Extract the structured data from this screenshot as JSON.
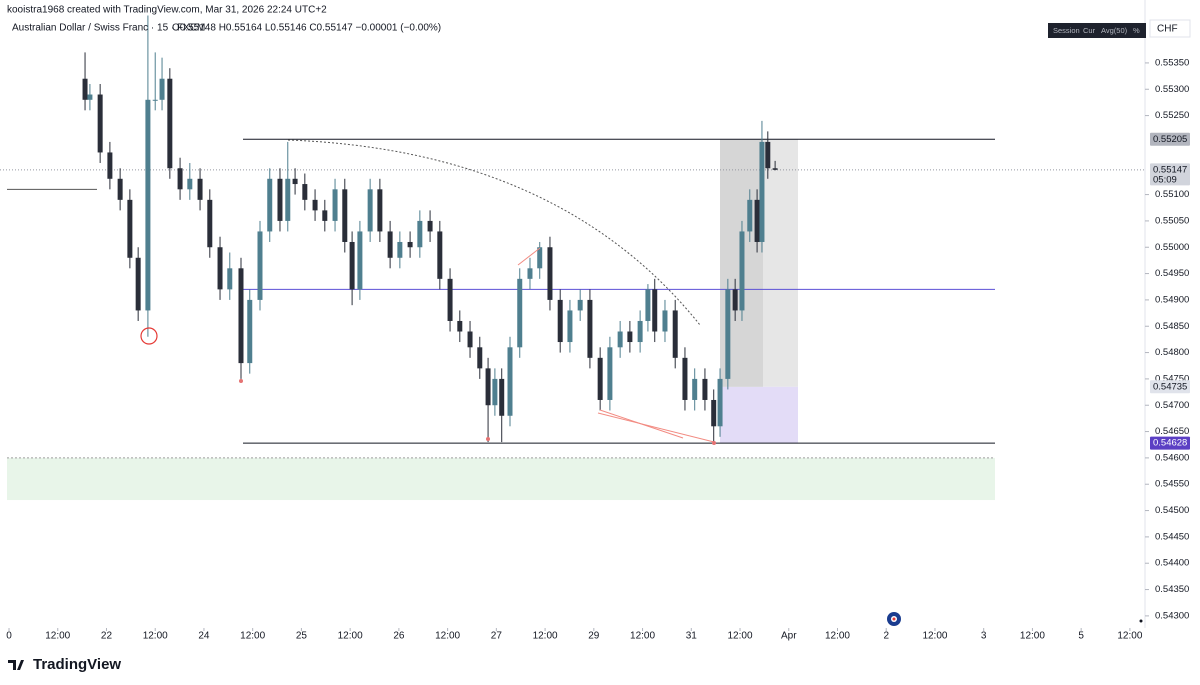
{
  "header": "kooistra1968 created with TradingView.com, Mar 31, 2026 22:24 UTC+2",
  "toolbar": [
    "Session",
    "Cur",
    "Avg(50)",
    "%"
  ],
  "currency": "CHF",
  "brand": "TradingView",
  "chart_data": {
    "type": "candlestick",
    "title": "Australian Dollar / Swiss Franc · 15 · FXCM",
    "ohlc_legend": "O0.55148 H0.55164 L0.55146 C0.55147 −0.00001 (−0.00%)",
    "up_color": "#4f7f8f",
    "down_color": "#2a2e39",
    "xlim": [
      -0.185,
      23.31
    ],
    "ylim": [
      0.54277,
      0.55441
    ],
    "xticks": [
      0,
      {
        "value": 1,
        "label": "12:00"
      },
      {
        "value": 2,
        "label": "22"
      },
      {
        "value": 3,
        "label": "12:00"
      },
      {
        "value": 4,
        "label": "24"
      },
      {
        "value": 5,
        "label": "12:00"
      },
      {
        "value": 6,
        "label": "25"
      },
      {
        "value": 7,
        "label": "12:00"
      },
      {
        "value": 8,
        "label": "26"
      },
      {
        "value": 9,
        "label": "12:00"
      },
      {
        "value": 10,
        "label": "27"
      },
      {
        "value": 11,
        "label": "12:00"
      },
      {
        "value": 12,
        "label": "29"
      },
      {
        "value": 13,
        "label": "12:00"
      },
      {
        "value": 14,
        "label": "31"
      },
      {
        "value": 15,
        "label": "12:00"
      },
      {
        "value": 16,
        "label": "Apr"
      },
      {
        "value": 17,
        "label": "12:00"
      },
      {
        "value": 18,
        "label": "2"
      },
      {
        "value": 19,
        "label": "12:00"
      },
      {
        "value": 20,
        "label": "3"
      },
      {
        "value": 21,
        "label": "12:00"
      },
      {
        "value": 22,
        "label": "5"
      },
      {
        "value": 23,
        "label": "12:00"
      }
    ],
    "yticks": [
      {
        "value": 0.5535,
        "label": "0.55350"
      },
      {
        "value": 0.553,
        "label": "0.55300"
      },
      {
        "value": 0.5525,
        "label": "0.55250"
      },
      {
        "value": 0.551,
        "label": "0.55100"
      },
      {
        "value": 0.5505,
        "label": "0.55050"
      },
      {
        "value": 0.55,
        "label": "0.55000"
      },
      {
        "value": 0.5495,
        "label": "0.54950"
      },
      {
        "value": 0.549,
        "label": "0.54900"
      },
      {
        "value": 0.5485,
        "label": "0.54850"
      },
      {
        "value": 0.548,
        "label": "0.54800"
      },
      {
        "value": 0.5475,
        "label": "0.54750"
      },
      {
        "value": 0.547,
        "label": "0.54700"
      },
      {
        "value": 0.5465,
        "label": "0.54650"
      },
      {
        "value": 0.546,
        "label": "0.54600"
      },
      {
        "value": 0.5455,
        "label": "0.54550"
      },
      {
        "value": 0.545,
        "label": "0.54500"
      },
      {
        "value": 0.5445,
        "label": "0.54450"
      },
      {
        "value": 0.544,
        "label": "0.54400"
      },
      {
        "value": 0.5435,
        "label": "0.54350"
      },
      {
        "value": 0.543,
        "label": "0.54300"
      }
    ],
    "price_tags": [
      {
        "value": 0.55205,
        "label": "0.55205",
        "color": "#b2b5be",
        "text_color": "#131722"
      },
      {
        "value": 0.55147,
        "label": "0.55147",
        "sub": "05:09",
        "color": "#d1d4dc",
        "text_color": "#131722"
      },
      {
        "value": 0.54735,
        "label": "0.54735",
        "color": "#e0e3eb",
        "text_color": "#131722"
      },
      {
        "value": 0.54628,
        "label": "0.54628",
        "color": "#5b3fc4",
        "text_color": "#ffffff"
      }
    ],
    "levels": [
      {
        "value": 0.55205,
        "color": "#131722"
      },
      {
        "value": 0.5492,
        "color": "#5b4fd6"
      },
      {
        "value": 0.54628,
        "color": "#131722"
      }
    ],
    "last_price": 0.55147,
    "left_level": 0.5511,
    "zones": [
      {
        "from": 0.546,
        "to": 0.5452,
        "color": "#e8f5e9"
      },
      {
        "from": 0.55205,
        "to": 0.54735,
        "color": "#e6e6e6"
      },
      {
        "from": 0.54735,
        "to": 0.54628,
        "color": "#e3dcf7"
      }
    ],
    "x": [
      1.56,
      1.66,
      1.87,
      2.07,
      2.28,
      2.48,
      2.65,
      2.85,
      3.0,
      3.14,
      3.3,
      3.51,
      3.71,
      3.92,
      4.12,
      4.33,
      4.53,
      4.76,
      4.94,
      5.15,
      5.35,
      5.56,
      5.72,
      5.87,
      6.07,
      6.28,
      6.48,
      6.69,
      6.89,
      7.04,
      7.2,
      7.41,
      7.61,
      7.82,
      8.02,
      8.23,
      8.43,
      8.64,
      8.84,
      9.05,
      9.25,
      9.46,
      9.66,
      9.83,
      9.97,
      10.11,
      10.28,
      10.48,
      10.69,
      10.89,
      11.1,
      11.31,
      11.51,
      11.72,
      11.92,
      12.13,
      12.33,
      12.54,
      12.74,
      12.95,
      13.11,
      13.25,
      13.46,
      13.67,
      13.87,
      14.07,
      14.28,
      14.46,
      14.59,
      14.75,
      14.9,
      15.04,
      15.2,
      15.35,
      15.45,
      15.57,
      15.72
    ],
    "candles": [
      [
        0.5532,
        0.5537,
        0.5526,
        0.5528
      ],
      [
        0.5528,
        0.5531,
        0.5526,
        0.5529
      ],
      [
        0.5529,
        0.5531,
        0.5516,
        0.5518
      ],
      [
        0.5518,
        0.552,
        0.5511,
        0.5513
      ],
      [
        0.5513,
        0.5515,
        0.5507,
        0.5509
      ],
      [
        0.5509,
        0.5511,
        0.5496,
        0.5498
      ],
      [
        0.5498,
        0.55,
        0.5486,
        0.5488
      ],
      [
        0.5488,
        0.5544,
        0.5483,
        0.5528
      ],
      [
        0.5528,
        0.5537,
        0.5526,
        0.5528
      ],
      [
        0.5528,
        0.5536,
        0.5526,
        0.5532
      ],
      [
        0.5532,
        0.5534,
        0.5513,
        0.5515
      ],
      [
        0.5515,
        0.5517,
        0.5509,
        0.5511
      ],
      [
        0.5511,
        0.5516,
        0.5509,
        0.5513
      ],
      [
        0.5513,
        0.5515,
        0.5507,
        0.5509
      ],
      [
        0.5509,
        0.5511,
        0.5498,
        0.55
      ],
      [
        0.55,
        0.5502,
        0.549,
        0.5492
      ],
      [
        0.5492,
        0.5499,
        0.549,
        0.5496
      ],
      [
        0.5496,
        0.5498,
        0.5475,
        0.5478
      ],
      [
        0.5478,
        0.5492,
        0.5476,
        0.549
      ],
      [
        0.549,
        0.5505,
        0.5488,
        0.5503
      ],
      [
        0.5503,
        0.5515,
        0.5501,
        0.5513
      ],
      [
        0.5513,
        0.5515,
        0.5503,
        0.5505
      ],
      [
        0.5505,
        0.552,
        0.5503,
        0.5513
      ],
      [
        0.5513,
        0.5515,
        0.551,
        0.5512
      ],
      [
        0.5512,
        0.5514,
        0.5507,
        0.5509
      ],
      [
        0.5509,
        0.5511,
        0.5505,
        0.5507
      ],
      [
        0.5507,
        0.5509,
        0.5503,
        0.5505
      ],
      [
        0.5505,
        0.5513,
        0.5503,
        0.5511
      ],
      [
        0.5511,
        0.5513,
        0.5499,
        0.5501
      ],
      [
        0.5501,
        0.5503,
        0.5489,
        0.5492
      ],
      [
        0.5492,
        0.5505,
        0.549,
        0.5503
      ],
      [
        0.5503,
        0.5513,
        0.5501,
        0.5511
      ],
      [
        0.5511,
        0.5513,
        0.5501,
        0.5503
      ],
      [
        0.5503,
        0.5505,
        0.5496,
        0.5498
      ],
      [
        0.5498,
        0.5503,
        0.5496,
        0.5501
      ],
      [
        0.5501,
        0.5503,
        0.5498,
        0.55
      ],
      [
        0.55,
        0.5507,
        0.5498,
        0.5505
      ],
      [
        0.5505,
        0.5507,
        0.5501,
        0.5503
      ],
      [
        0.5503,
        0.5505,
        0.5492,
        0.5494
      ],
      [
        0.5494,
        0.5496,
        0.5484,
        0.5486
      ],
      [
        0.5486,
        0.5488,
        0.5482,
        0.5484
      ],
      [
        0.5484,
        0.5486,
        0.5479,
        0.5481
      ],
      [
        0.5481,
        0.5483,
        0.5475,
        0.5477
      ],
      [
        0.5477,
        0.5479,
        0.5463,
        0.547
      ],
      [
        0.547,
        0.5477,
        0.5468,
        0.5475
      ],
      [
        0.5475,
        0.5477,
        0.5463,
        0.5468
      ],
      [
        0.5468,
        0.5483,
        0.5466,
        0.5481
      ],
      [
        0.5481,
        0.5496,
        0.5479,
        0.5494
      ],
      [
        0.5494,
        0.5498,
        0.5492,
        0.5496
      ],
      [
        0.5496,
        0.5501,
        0.5494,
        0.55
      ],
      [
        0.55,
        0.5502,
        0.5488,
        0.549
      ],
      [
        0.549,
        0.5492,
        0.548,
        0.5482
      ],
      [
        0.5482,
        0.549,
        0.548,
        0.5488
      ],
      [
        0.5488,
        0.5492,
        0.5486,
        0.549
      ],
      [
        0.549,
        0.5492,
        0.5477,
        0.5479
      ],
      [
        0.5479,
        0.5481,
        0.5469,
        0.5471
      ],
      [
        0.5471,
        0.5483,
        0.5469,
        0.5481
      ],
      [
        0.5481,
        0.5486,
        0.5479,
        0.5484
      ],
      [
        0.5484,
        0.5486,
        0.548,
        0.5482
      ],
      [
        0.5482,
        0.5488,
        0.548,
        0.5486
      ],
      [
        0.5486,
        0.5493,
        0.5484,
        0.5492
      ],
      [
        0.5492,
        0.5494,
        0.5482,
        0.5484
      ],
      [
        0.5484,
        0.549,
        0.5482,
        0.5488
      ],
      [
        0.5488,
        0.549,
        0.5477,
        0.5479
      ],
      [
        0.5479,
        0.5481,
        0.5469,
        0.5471
      ],
      [
        0.5471,
        0.5477,
        0.5469,
        0.5475
      ],
      [
        0.5475,
        0.5477,
        0.5469,
        0.5471
      ],
      [
        0.5471,
        0.5473,
        0.5463,
        0.5466
      ],
      [
        0.5466,
        0.5477,
        0.5464,
        0.5475
      ],
      [
        0.5475,
        0.5494,
        0.5473,
        0.5492
      ],
      [
        0.5492,
        0.5494,
        0.5486,
        0.5488
      ],
      [
        0.5488,
        0.5505,
        0.5486,
        0.5503
      ],
      [
        0.5503,
        0.5511,
        0.5501,
        0.5509
      ],
      [
        0.5509,
        0.5511,
        0.5499,
        0.5501
      ],
      [
        0.5501,
        0.5524,
        0.5499,
        0.552
      ],
      [
        0.552,
        0.5522,
        0.5513,
        0.5515
      ],
      [
        0.5515,
        0.55164,
        0.55146,
        0.55147
      ]
    ]
  }
}
